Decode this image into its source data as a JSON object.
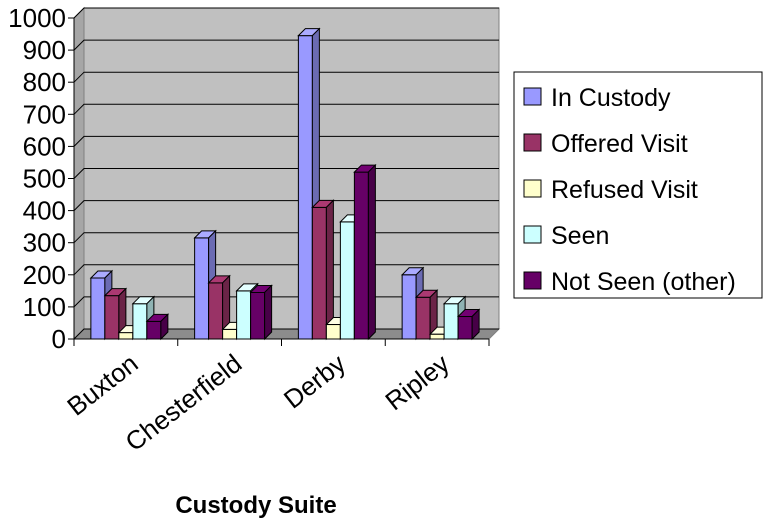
{
  "chart_data": {
    "type": "bar",
    "title": "",
    "xlabel": "Custody Suite",
    "ylabel": "",
    "ylim": [
      0,
      1000
    ],
    "yticks": [
      0,
      100,
      200,
      300,
      400,
      500,
      600,
      700,
      800,
      900,
      1000
    ],
    "ytick_labels": [
      "0",
      "100",
      "200",
      "300",
      "400",
      "500",
      "600",
      "700",
      "800",
      "900",
      "1000"
    ],
    "grid": true,
    "legend_position": "right",
    "categories": [
      "Buxton",
      "Chesterfield",
      "Derby",
      "Ripley"
    ],
    "series": [
      {
        "name": "In Custody",
        "color": "#9999ff",
        "values": [
          190,
          315,
          945,
          200
        ]
      },
      {
        "name": "Offered Visit",
        "color": "#993366",
        "values": [
          135,
          175,
          410,
          130
        ]
      },
      {
        "name": "Refused Visit",
        "color": "#ffffcc",
        "values": [
          20,
          30,
          45,
          15
        ]
      },
      {
        "name": "Seen",
        "color": "#ccffff",
        "values": [
          110,
          150,
          365,
          110
        ]
      },
      {
        "name": "Not Seen (other)",
        "color": "#660066",
        "values": [
          55,
          145,
          520,
          70
        ]
      }
    ]
  }
}
